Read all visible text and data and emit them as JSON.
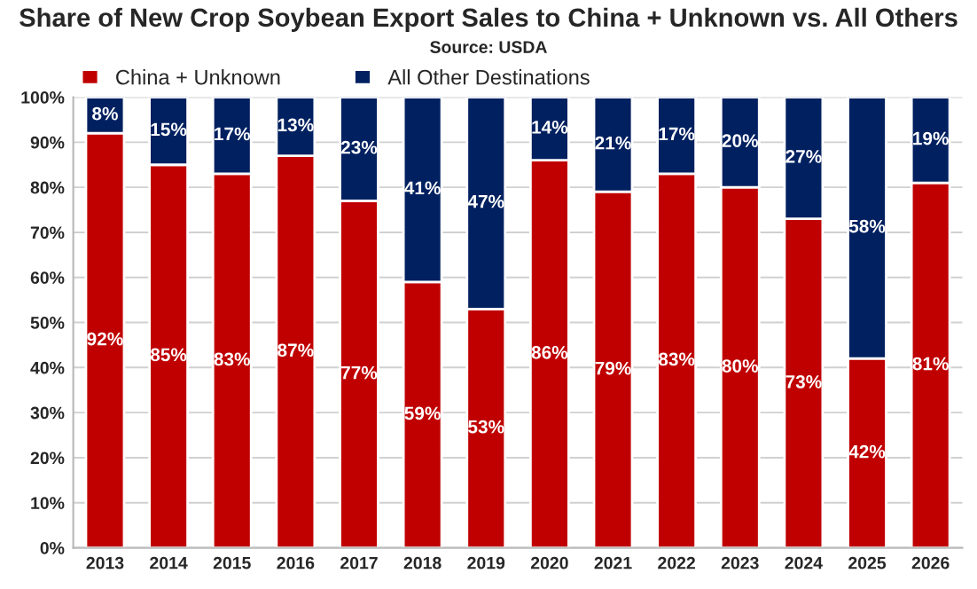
{
  "chart_data": {
    "type": "bar",
    "stacked": true,
    "title": "Share of New Crop Soybean Export Sales to China + Unknown vs. All Others",
    "subtitle": "Source: USDA",
    "categories": [
      "2013",
      "2014",
      "2015",
      "2016",
      "2017",
      "2018",
      "2019",
      "2020",
      "2021",
      "2022",
      "2023",
      "2024",
      "2025",
      "2026"
    ],
    "series": [
      {
        "name": "China + Unknown",
        "color": "#c00000",
        "values": [
          92,
          85,
          83,
          87,
          77,
          59,
          53,
          86,
          79,
          83,
          80,
          73,
          42,
          81
        ],
        "value_labels": [
          "92%",
          "85%",
          "83%",
          "87%",
          "77%",
          "59%",
          "53%",
          "86%",
          "79%",
          "83%",
          "80%",
          "73%",
          "42%",
          "81%"
        ]
      },
      {
        "name": "All Other Destinations",
        "color": "#002060",
        "values": [
          8,
          15,
          17,
          13,
          23,
          41,
          47,
          14,
          21,
          17,
          20,
          27,
          58,
          19
        ],
        "value_labels": [
          "8%",
          "15%",
          "17%",
          "13%",
          "23%",
          "41%",
          "47%",
          "14%",
          "21%",
          "17%",
          "20%",
          "27%",
          "58%",
          "19%"
        ]
      }
    ],
    "ylim": [
      0,
      100
    ],
    "yticks": [
      {
        "value": 0,
        "label": "0%"
      },
      {
        "value": 10,
        "label": "10%"
      },
      {
        "value": 20,
        "label": "20%"
      },
      {
        "value": 30,
        "label": "30%"
      },
      {
        "value": 40,
        "label": "40%"
      },
      {
        "value": 50,
        "label": "50%"
      },
      {
        "value": 60,
        "label": "60%"
      },
      {
        "value": 70,
        "label": "70%"
      },
      {
        "value": 80,
        "label": "80%"
      },
      {
        "value": 90,
        "label": "90%"
      },
      {
        "value": 100,
        "label": "100%"
      }
    ],
    "grid": "y",
    "legend": "top left"
  }
}
